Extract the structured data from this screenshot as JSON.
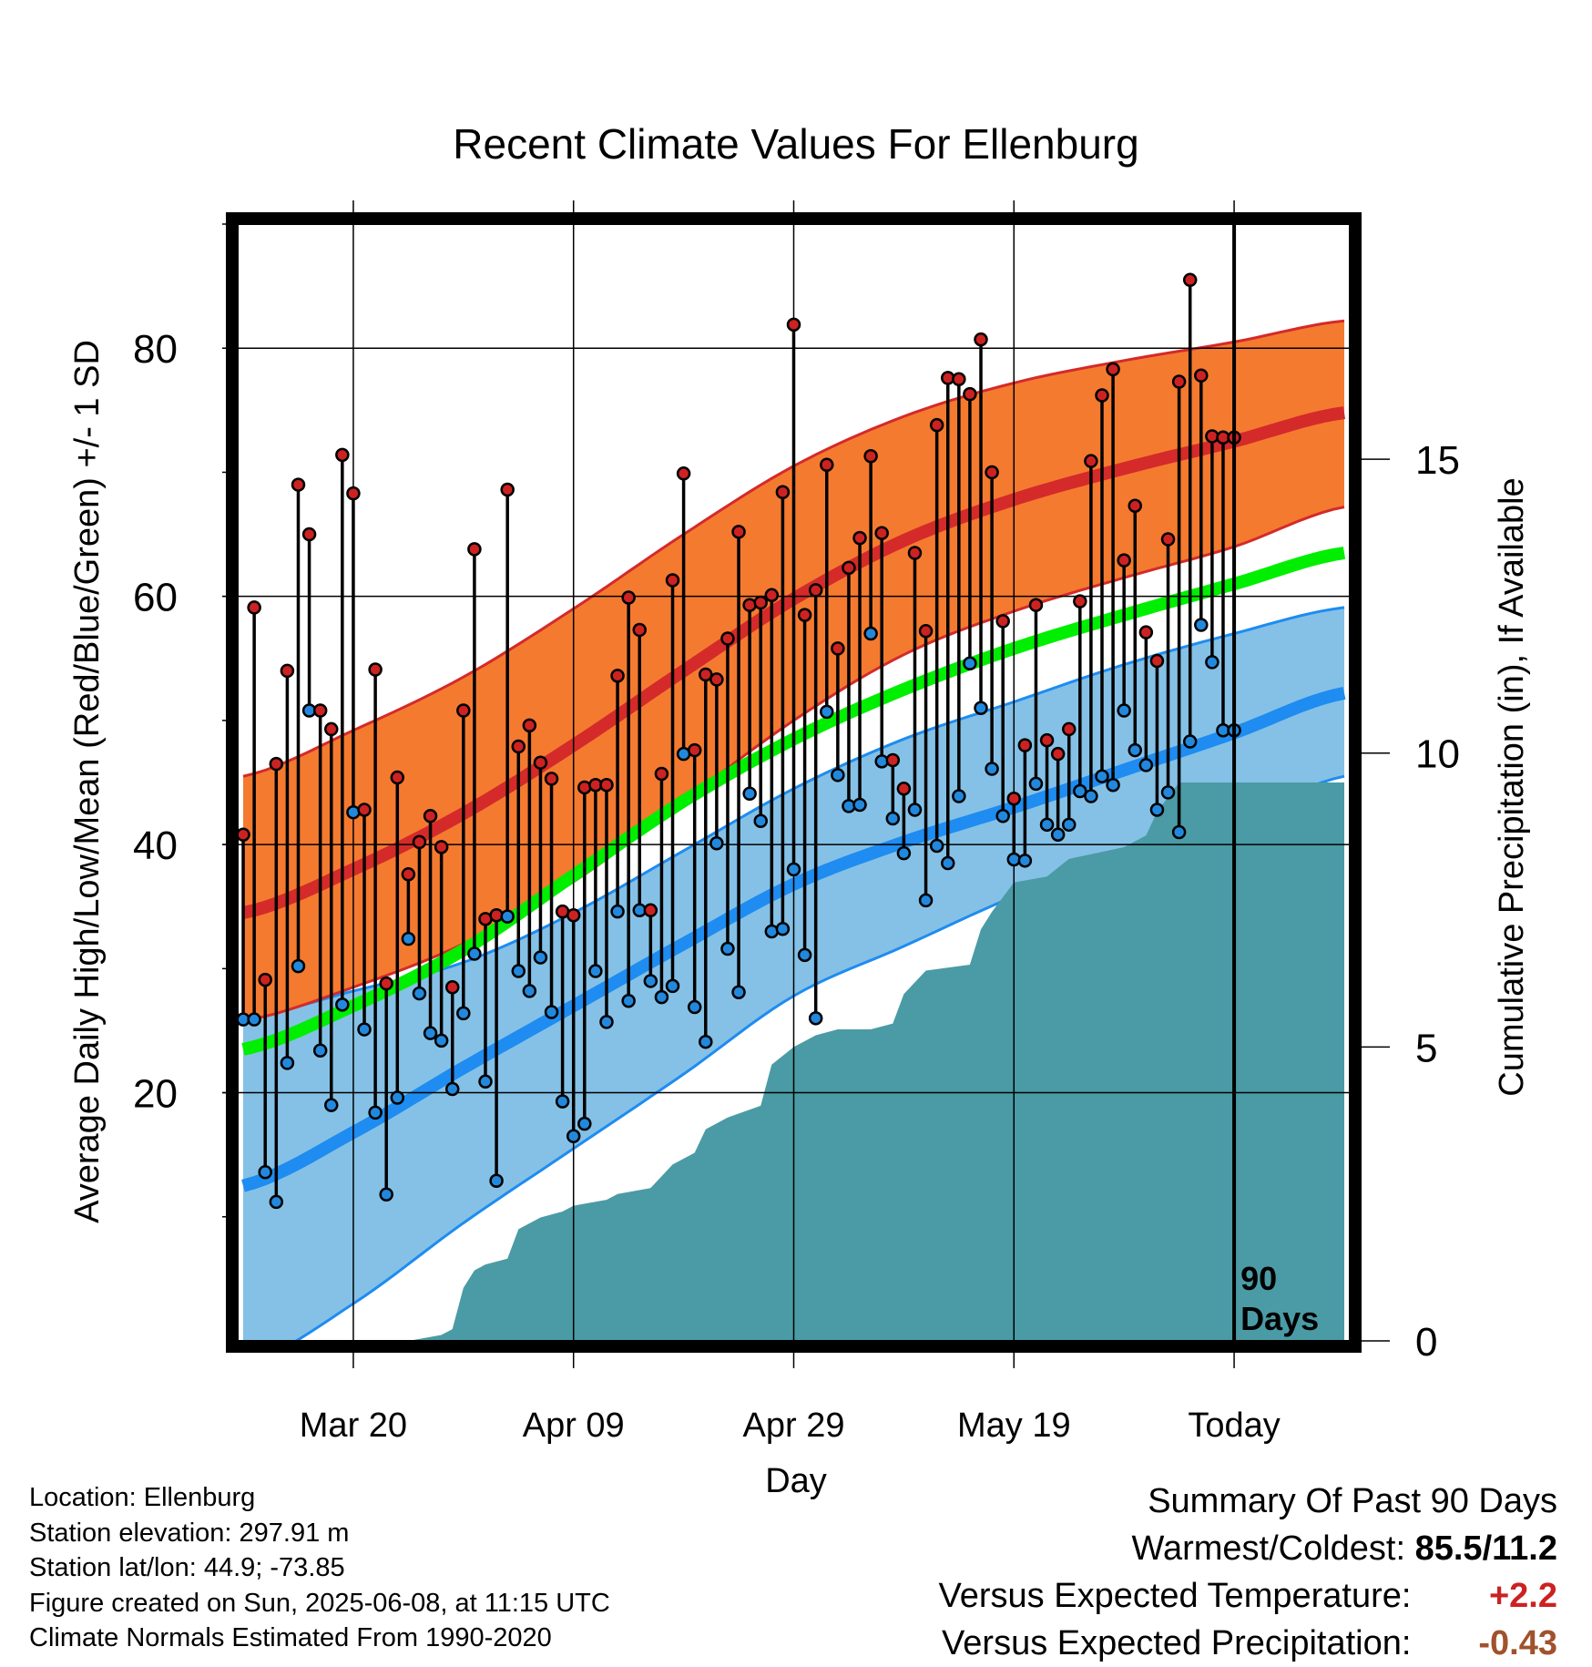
{
  "chart_data": {
    "type": "line",
    "title": "Recent Climate Values For Ellenburg",
    "xlabel": "Day",
    "ylabel_left": "Average Daily High/Low/Mean (Red/Blue/Green) +/- 1 SD",
    "ylabel_right": "Cumulative Precipitation (in), If Available",
    "x_ticks": [
      {
        "day": 10,
        "label": "Mar 20"
      },
      {
        "day": 30,
        "label": "Apr 09"
      },
      {
        "day": 50,
        "label": "Apr 29"
      },
      {
        "day": 70,
        "label": "May 19"
      },
      {
        "day": 90,
        "label": "Today"
      }
    ],
    "xlim": [
      -0.5,
      100.5
    ],
    "ylim_temp": [
      0,
      90
    ],
    "y_ticks_temp": [
      "20",
      "40",
      "60",
      "80"
    ],
    "ylim_precip": [
      0,
      19
    ],
    "y_ticks_precip": [
      "0",
      "5",
      "10",
      "15"
    ],
    "today_day": 90,
    "today_label_1": "90",
    "today_label_2": "Days",
    "colors": {
      "high_band": "#f47a30",
      "high_line": "#d42a2a",
      "low_band": "#85c1e6",
      "low_line": "#1e8cf0",
      "mean_line": "#00ee00",
      "precip": "#4a9ba5",
      "obs_high_dot": "#cc2222",
      "obs_low_dot": "#2288dd"
    },
    "normal_high": {
      "days": [
        0,
        10,
        20,
        30,
        40,
        50,
        60,
        70,
        80,
        90,
        100
      ],
      "mean": [
        34.5,
        38,
        42.5,
        48,
        54,
        59.8,
        64.5,
        67.8,
        70.3,
        72.5,
        74.8
      ],
      "upper": [
        45.5,
        49.2,
        53.5,
        59,
        65,
        70.5,
        74.5,
        77.2,
        79,
        80.5,
        82.2
      ],
      "lower": [
        25.8,
        28.5,
        32,
        37,
        43.5,
        50,
        55.3,
        58.8,
        61.5,
        64,
        67.2
      ]
    },
    "normal_low": {
      "days": [
        0,
        10,
        20,
        30,
        40,
        50,
        60,
        70,
        80,
        90,
        100
      ],
      "mean": [
        12.5,
        16.8,
        22,
        27,
        32,
        36.8,
        40.2,
        43,
        46,
        49,
        52.2
      ],
      "upper": [
        26,
        28.2,
        30.5,
        34.5,
        39.5,
        44.5,
        48.5,
        51.5,
        54.5,
        57,
        59.1
      ],
      "lower": [
        -2,
        3,
        9.5,
        15.5,
        21.5,
        27.8,
        31.8,
        35.8,
        39,
        42,
        45.5
      ]
    },
    "normal_mean": {
      "days": [
        0,
        10,
        20,
        30,
        40,
        50,
        60,
        70,
        80,
        90,
        100
      ],
      "values": [
        23.5,
        27,
        31.5,
        37.5,
        43.5,
        48.5,
        52.5,
        55.8,
        58.5,
        61,
        63.5
      ]
    },
    "daily": {
      "days": [
        0,
        1,
        2,
        3,
        4,
        5,
        6,
        7,
        8,
        9,
        10,
        11,
        12,
        13,
        14,
        15,
        16,
        17,
        18,
        19,
        20,
        21,
        22,
        23,
        24,
        25,
        26,
        27,
        28,
        29,
        30,
        31,
        32,
        33,
        34,
        35,
        36,
        37,
        38,
        39,
        40,
        41,
        42,
        43,
        44,
        45,
        46,
        47,
        48,
        49,
        50,
        51,
        52,
        53,
        54,
        55,
        56,
        57,
        58,
        59,
        60,
        61,
        62,
        63,
        64,
        65,
        66,
        67,
        68,
        69,
        70,
        71,
        72,
        73,
        74,
        75,
        76,
        77,
        78,
        79,
        80,
        81,
        82,
        83,
        84,
        85,
        86,
        87,
        88,
        89,
        90
      ],
      "high": [
        40.8,
        59.1,
        29.1,
        46.5,
        54.0,
        69.0,
        65.0,
        50.8,
        49.3,
        71.4,
        68.3,
        42.8,
        54.1,
        28.8,
        45.4,
        37.6,
        40.2,
        42.3,
        39.8,
        28.5,
        50.8,
        63.8,
        34.0,
        34.3,
        68.6,
        47.9,
        49.6,
        46.6,
        45.3,
        34.6,
        34.3,
        44.6,
        44.8,
        44.8,
        53.6,
        59.9,
        57.3,
        34.7,
        45.7,
        61.3,
        69.9,
        47.6,
        53.7,
        53.3,
        56.6,
        65.2,
        59.3,
        59.5,
        60.1,
        68.4,
        81.9,
        58.5,
        60.5,
        70.6,
        55.8,
        62.3,
        64.7,
        71.3,
        65.1,
        46.8,
        44.5,
        63.5,
        57.2,
        73.8,
        77.6,
        77.5,
        76.3,
        80.7,
        70.0,
        58.0,
        43.7,
        48.0,
        59.3,
        48.4,
        47.3,
        49.3,
        59.6,
        70.9,
        76.2,
        78.3,
        62.9,
        67.3,
        57.1,
        54.8,
        64.6,
        77.3,
        85.5,
        77.8,
        72.9,
        72.8,
        72.8
      ],
      "low": [
        25.9,
        25.9,
        13.6,
        11.2,
        22.4,
        30.2,
        50.8,
        23.4,
        19.0,
        27.1,
        42.6,
        25.1,
        18.4,
        11.8,
        19.6,
        32.4,
        28.0,
        24.8,
        24.2,
        20.3,
        26.4,
        31.2,
        20.9,
        12.9,
        34.2,
        29.8,
        28.2,
        30.9,
        26.5,
        19.3,
        16.5,
        17.5,
        29.8,
        25.7,
        34.6,
        27.4,
        34.7,
        29.0,
        27.7,
        28.6,
        47.3,
        26.9,
        24.1,
        40.1,
        31.6,
        28.1,
        44.1,
        41.9,
        33.0,
        33.2,
        38.0,
        31.1,
        26.0,
        50.7,
        45.6,
        43.1,
        43.2,
        57.0,
        46.7,
        42.1,
        39.3,
        42.8,
        35.5,
        39.9,
        38.5,
        43.9,
        54.6,
        51.0,
        46.1,
        42.3,
        38.8,
        38.7,
        44.9,
        41.6,
        40.8,
        41.6,
        44.3,
        43.9,
        45.5,
        44.8,
        50.8,
        47.6,
        46.4,
        42.8,
        44.2,
        41.0,
        48.3,
        57.7,
        54.7,
        49.2,
        49.2
      ]
    },
    "precip_cumulative": {
      "days": [
        0,
        7,
        15,
        18,
        19,
        20,
        21,
        22,
        24,
        25,
        27,
        29,
        30,
        33,
        34,
        37,
        39,
        41,
        42,
        44,
        47,
        48,
        50,
        52,
        54,
        57,
        59,
        60,
        62,
        66,
        67,
        68,
        70,
        73,
        75,
        80,
        82,
        83,
        85,
        88,
        90,
        100
      ],
      "values": [
        0,
        0,
        0,
        0.1,
        0.2,
        0.9,
        1.2,
        1.3,
        1.4,
        1.9,
        2.1,
        2.2,
        2.3,
        2.4,
        2.5,
        2.6,
        3.0,
        3.2,
        3.6,
        3.8,
        4.0,
        4.7,
        5.0,
        5.2,
        5.3,
        5.3,
        5.4,
        5.9,
        6.3,
        6.4,
        7.0,
        7.3,
        7.8,
        7.9,
        8.2,
        8.4,
        8.6,
        9.0,
        9.5,
        9.5,
        9.5,
        9.5
      ]
    }
  },
  "footer": {
    "location": "Location: Ellenburg",
    "elevation": "Station elevation: 297.91 m",
    "latlon": "Station lat/lon: 44.9; -73.85",
    "created": "Figure created on Sun, 2025-06-08, at 11:15 UTC",
    "normals": "Climate Normals Estimated From 1990-2020"
  },
  "summary": {
    "title": "Summary Of Past 90 Days",
    "warmest_label": "Warmest/Coldest:",
    "warmest_value": "85.5/11.2",
    "temp_label": "Versus Expected Temperature:",
    "temp_value": "+2.2",
    "precip_label": "Versus Expected Precipitation:",
    "precip_value": "-0.43"
  }
}
